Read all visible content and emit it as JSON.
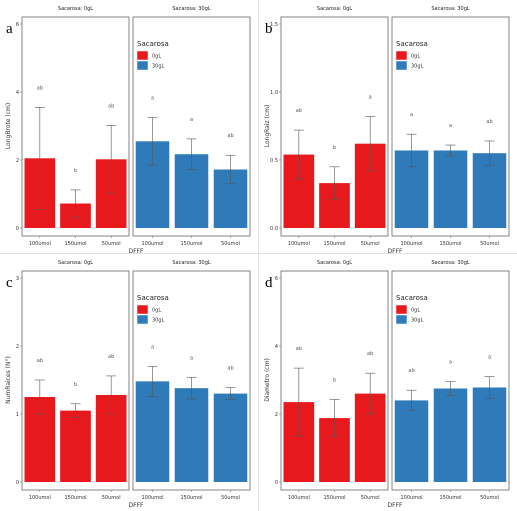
{
  "colors": {
    "sacarosa_0gL": "#e8191c",
    "sacarosa_30gL": "#2f7ab9",
    "error_bar": "#555555",
    "border": "#666666"
  },
  "chart_data": [
    {
      "panel": "a",
      "type": "bar",
      "facets": [
        "Sacarosa: 0gL",
        "Sacarosa: 30gL"
      ],
      "categories": [
        "100umol",
        "150umol",
        "50umol"
      ],
      "xlabel": "DFFF",
      "ylabel": "LongBrote (cm)",
      "ylim": [
        0,
        6
      ],
      "yticks": [
        "0",
        "2",
        "4",
        "6"
      ],
      "legend": {
        "title": "Sacarosa",
        "entries": [
          "0gL",
          "30gL"
        ]
      },
      "series": [
        {
          "name": "0gL",
          "values": [
            2.05,
            0.72,
            2.02
          ],
          "errors": [
            1.5,
            0.4,
            1.0
          ],
          "letters": [
            "ab",
            "b",
            "ab"
          ]
        },
        {
          "name": "30gL",
          "values": [
            2.55,
            2.17,
            1.72
          ],
          "errors": [
            0.7,
            0.45,
            0.42
          ],
          "letters": [
            "a",
            "a",
            "ab"
          ]
        }
      ]
    },
    {
      "panel": "b",
      "type": "bar",
      "facets": [
        "Sacarosa: 0gL",
        "Sacarosa: 30gL"
      ],
      "categories": [
        "100umol",
        "150umol",
        "50umol"
      ],
      "xlabel": "DFFF",
      "ylabel": "LongRaiz (cm)",
      "ylim": [
        0,
        1.5
      ],
      "yticks": [
        "0.0",
        "0.5",
        "1.0",
        "1.5"
      ],
      "legend": {
        "title": "Sacarosa",
        "entries": [
          "0gL",
          "30gL"
        ]
      },
      "series": [
        {
          "name": "0gL",
          "values": [
            0.54,
            0.33,
            0.62
          ],
          "errors": [
            0.18,
            0.12,
            0.2
          ],
          "letters": [
            "ab",
            "b",
            "a"
          ]
        },
        {
          "name": "30gL",
          "values": [
            0.57,
            0.57,
            0.55
          ],
          "errors": [
            0.12,
            0.04,
            0.09
          ],
          "letters": [
            "a",
            "a",
            "ab"
          ]
        }
      ]
    },
    {
      "panel": "c",
      "type": "bar",
      "facets": [
        "Sacarosa: 0gL",
        "Sacarosa: 30gL"
      ],
      "categories": [
        "100umol",
        "150umol",
        "50umol"
      ],
      "xlabel": "DFFF",
      "ylabel": "NumRaices (N°)",
      "ylim": [
        0,
        3
      ],
      "yticks": [
        "0",
        "1",
        "2",
        "3"
      ],
      "legend": {
        "title": "Sacarosa",
        "entries": [
          "0gL",
          "30gL"
        ]
      },
      "series": [
        {
          "name": "0gL",
          "values": [
            1.25,
            1.05,
            1.28
          ],
          "errors": [
            0.25,
            0.1,
            0.28
          ],
          "letters": [
            "ab",
            "b",
            "ab"
          ]
        },
        {
          "name": "30gL",
          "values": [
            1.48,
            1.38,
            1.3
          ],
          "errors": [
            0.22,
            0.16,
            0.09
          ],
          "letters": [
            "a",
            "a",
            "ab"
          ]
        }
      ]
    },
    {
      "panel": "d",
      "type": "bar",
      "facets": [
        "Sacarosa: 0gL",
        "Sacarosa: 30gL"
      ],
      "categories": [
        "100umol",
        "150umol",
        "50umol"
      ],
      "xlabel": "DFFF",
      "ylabel": "Diametro (cm)",
      "ylim": [
        0,
        6
      ],
      "yticks": [
        "0",
        "2",
        "4",
        "6"
      ],
      "legend": {
        "title": "Sacarosa",
        "entries": [
          "0gL",
          "30gL"
        ]
      },
      "series": [
        {
          "name": "0gL",
          "values": [
            2.35,
            1.88,
            2.6
          ],
          "errors": [
            1.0,
            0.55,
            0.6
          ],
          "letters": [
            "ab",
            "b",
            "ab"
          ]
        },
        {
          "name": "30gL",
          "values": [
            2.4,
            2.75,
            2.78
          ],
          "errors": [
            0.3,
            0.2,
            0.32
          ],
          "letters": [
            "ab",
            "a",
            "a"
          ]
        }
      ]
    }
  ]
}
